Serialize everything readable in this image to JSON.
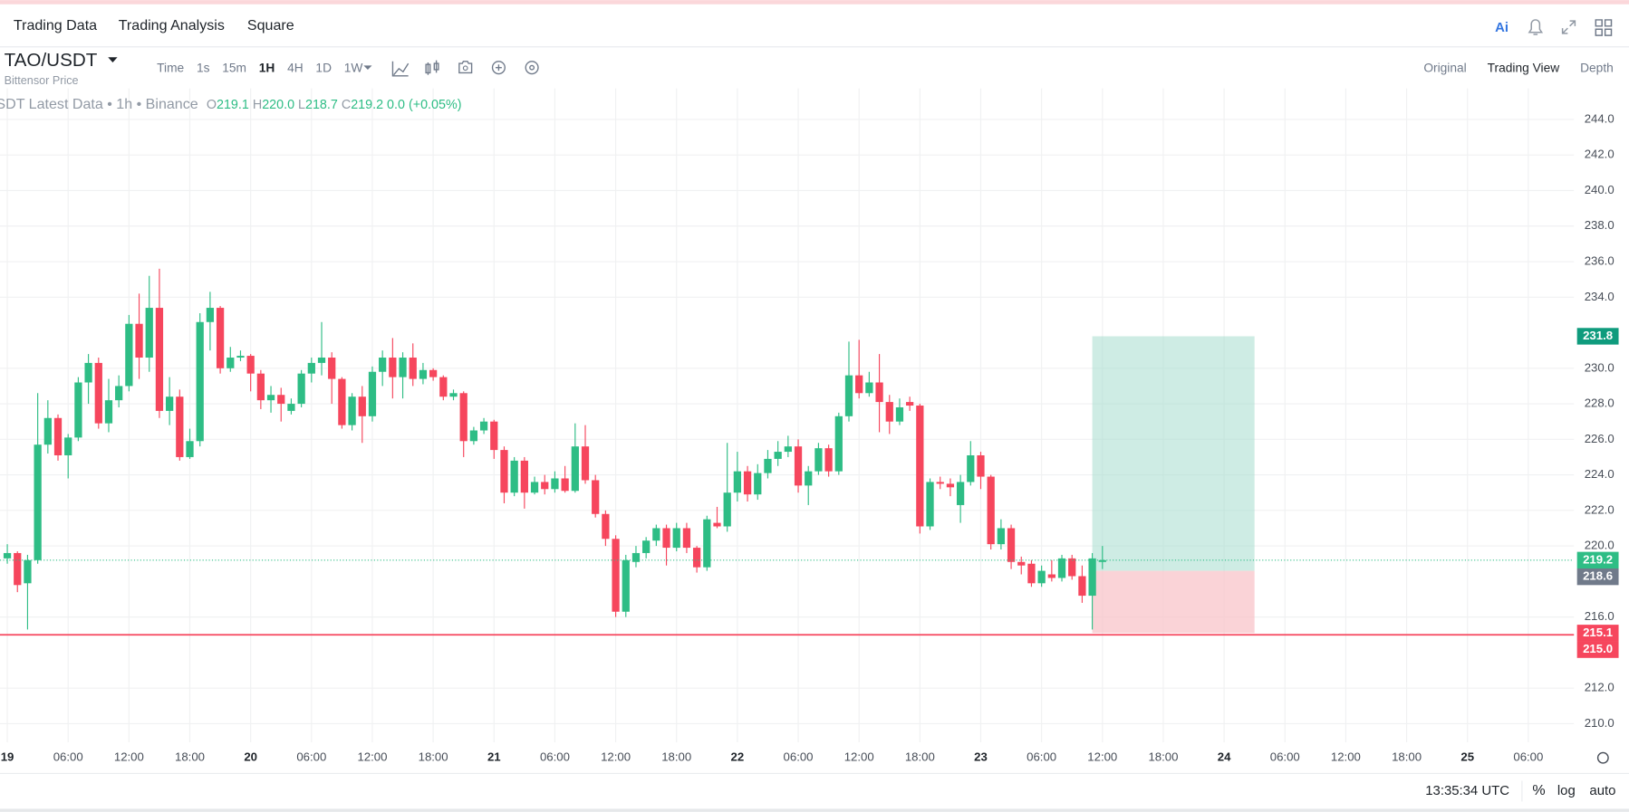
{
  "nav": {
    "items": [
      "Trading Data",
      "Trading Analysis",
      "Square"
    ],
    "ai": "Ai"
  },
  "symbol": {
    "pair": "TAO/USDT",
    "name": "Bittensor Price"
  },
  "toolbar": {
    "intervals": [
      "Time",
      "1s",
      "15m",
      "1H",
      "4H",
      "1D",
      "1W"
    ],
    "active": "1H",
    "views": [
      "Original",
      "Trading View",
      "Depth"
    ],
    "active_view": "Trading View"
  },
  "legend": {
    "source": "SDT Latest Data • 1h • Binance",
    "o_label": "O",
    "o": "219.1",
    "h_label": "H",
    "h": "220.0",
    "l_label": "L",
    "l": "218.7",
    "c_label": "C",
    "c": "219.2",
    "change": "0.0 (+0.05%)"
  },
  "footer": {
    "clock": "13:35:34 UTC",
    "percent": "%",
    "log": "log",
    "auto": "auto"
  },
  "chart_data": {
    "type": "candlestick",
    "x": [
      0,
      1,
      2,
      3,
      4,
      5,
      6,
      7,
      8,
      9,
      10,
      11,
      12,
      13,
      14,
      15,
      16,
      17,
      18,
      19,
      20,
      21,
      22,
      23,
      24,
      25,
      26,
      27,
      28,
      29,
      30,
      31,
      32,
      33,
      34,
      35,
      36,
      37,
      38,
      39,
      40,
      41,
      42,
      43,
      44,
      45,
      46,
      47,
      48,
      49,
      50,
      51,
      52,
      53,
      54,
      55,
      56,
      57,
      58,
      59,
      60,
      61,
      62,
      63,
      64,
      65,
      66,
      67,
      68,
      69,
      70,
      71,
      72,
      73,
      74,
      75,
      76,
      77,
      78,
      79,
      80,
      81,
      82,
      83,
      84,
      85,
      86,
      87,
      88,
      89,
      90,
      91,
      92,
      93,
      94,
      95,
      96,
      97,
      98,
      99,
      100,
      101,
      102,
      103,
      104,
      105,
      106,
      107,
      108
    ],
    "open": [
      219.3,
      219.6,
      217.9,
      219.2,
      225.7,
      227.2,
      225.1,
      226.1,
      229.2,
      230.3,
      226.9,
      228.2,
      229.0,
      232.5,
      230.6,
      233.4,
      227.6,
      228.4,
      225.0,
      225.9,
      232.6,
      233.4,
      230.0,
      230.6,
      230.7,
      229.7,
      228.2,
      228.5,
      227.6,
      228.0,
      229.7,
      230.3,
      230.6,
      229.4,
      226.8,
      228.4,
      227.3,
      229.8,
      230.6,
      229.5,
      230.6,
      229.4,
      229.9,
      229.5,
      228.4,
      228.6,
      225.9,
      226.5,
      227.0,
      225.4,
      223.0,
      224.8,
      223.0,
      223.6,
      223.2,
      223.8,
      223.1,
      225.6,
      223.7,
      221.8,
      220.4,
      216.3,
      219.1,
      219.6,
      220.3,
      221.0,
      219.9,
      221.0,
      219.9,
      218.8,
      221.3,
      221.1,
      223.0,
      224.2,
      222.9,
      224.1,
      224.9,
      225.3,
      225.6,
      223.4,
      224.2,
      225.5,
      224.2,
      227.3,
      229.6,
      228.6,
      229.2,
      228.1,
      227.0,
      228.1,
      227.9,
      221.1,
      223.6,
      223.5,
      222.3,
      223.6,
      225.1,
      223.9,
      220.1,
      221.0,
      219.1,
      219.0,
      217.9,
      218.4,
      218.2,
      219.3,
      218.3,
      217.2,
      219.1
    ],
    "high": [
      220.1,
      219.7,
      219.5,
      228.6,
      228.2,
      227.4,
      226.3,
      229.5,
      230.8,
      230.6,
      229.4,
      229.6,
      233.0,
      234.2,
      235.2,
      235.6,
      229.5,
      228.8,
      226.6,
      233.1,
      234.3,
      233.5,
      231.2,
      231.0,
      230.8,
      229.9,
      229.0,
      228.9,
      228.3,
      229.9,
      230.6,
      232.6,
      230.9,
      229.5,
      228.6,
      229.0,
      230.1,
      231.0,
      231.7,
      230.9,
      231.4,
      230.3,
      230.0,
      229.6,
      228.8,
      228.7,
      226.7,
      227.2,
      227.1,
      225.6,
      225.0,
      225.0,
      223.9,
      224.0,
      224.2,
      224.5,
      226.9,
      226.8,
      224.0,
      222.0,
      220.6,
      219.5,
      220.0,
      220.5,
      221.2,
      221.2,
      221.3,
      221.3,
      220.0,
      221.7,
      222.2,
      225.8,
      225.3,
      224.5,
      224.6,
      225.4,
      225.9,
      226.2,
      226.0,
      224.5,
      225.8,
      225.7,
      227.5,
      231.5,
      231.6,
      229.8,
      230.8,
      228.5,
      228.3,
      228.4,
      228.0,
      223.8,
      223.9,
      223.8,
      224.0,
      225.9,
      225.3,
      224.0,
      221.5,
      221.2,
      219.4,
      219.2,
      218.9,
      219.2,
      219.5,
      219.5,
      218.9,
      219.6,
      220.0
    ],
    "low": [
      219.0,
      217.4,
      215.3,
      219.0,
      225.2,
      224.8,
      223.8,
      225.9,
      228.0,
      226.6,
      226.4,
      227.8,
      228.7,
      229.4,
      229.8,
      227.2,
      226.8,
      224.8,
      224.9,
      225.6,
      231.0,
      229.7,
      229.8,
      230.4,
      228.7,
      227.7,
      227.5,
      227.0,
      227.4,
      227.8,
      229.2,
      229.6,
      228.0,
      226.6,
      226.5,
      225.8,
      227.0,
      229.0,
      228.3,
      228.3,
      229.0,
      229.1,
      229.3,
      228.2,
      228.2,
      225.0,
      225.7,
      226.3,
      224.9,
      222.4,
      222.8,
      222.1,
      222.9,
      222.9,
      223.0,
      223.0,
      223.0,
      223.5,
      221.6,
      220.0,
      216.0,
      216.0,
      218.8,
      219.3,
      220.0,
      218.9,
      219.7,
      219.6,
      218.5,
      218.6,
      221.0,
      220.8,
      222.5,
      222.5,
      222.6,
      223.8,
      224.5,
      225.0,
      223.0,
      222.3,
      224.0,
      223.9,
      224.0,
      227.0,
      228.3,
      228.4,
      226.4,
      226.3,
      226.8,
      227.6,
      220.7,
      220.9,
      223.2,
      222.8,
      221.3,
      223.4,
      223.2,
      219.8,
      219.8,
      218.7,
      218.4,
      217.7,
      217.7,
      218.0,
      218.0,
      218.1,
      216.8,
      215.3,
      218.7
    ],
    "close": [
      219.6,
      217.8,
      219.2,
      225.7,
      227.2,
      225.1,
      226.1,
      229.2,
      230.3,
      226.9,
      228.2,
      229.0,
      232.5,
      230.6,
      233.4,
      227.6,
      228.4,
      225.0,
      225.9,
      232.6,
      233.4,
      230.0,
      230.6,
      230.7,
      229.7,
      228.2,
      228.5,
      228.0,
      228.0,
      229.7,
      230.3,
      230.6,
      229.4,
      226.8,
      228.4,
      227.3,
      229.8,
      230.6,
      229.5,
      230.6,
      229.4,
      229.9,
      229.5,
      228.4,
      228.6,
      225.9,
      226.5,
      227.0,
      225.4,
      223.0,
      224.8,
      223.0,
      223.6,
      223.2,
      223.8,
      223.1,
      225.6,
      223.7,
      221.8,
      220.4,
      216.3,
      219.2,
      219.6,
      220.3,
      221.0,
      219.9,
      221.0,
      219.9,
      218.8,
      221.5,
      221.1,
      223.0,
      224.2,
      222.9,
      224.1,
      224.9,
      225.3,
      225.6,
      223.4,
      224.2,
      225.5,
      224.2,
      227.3,
      229.6,
      228.6,
      229.2,
      228.1,
      227.0,
      227.8,
      227.9,
      221.1,
      223.6,
      223.5,
      223.3,
      223.6,
      225.1,
      223.9,
      220.1,
      221.0,
      219.1,
      218.9,
      217.9,
      218.6,
      218.2,
      219.3,
      218.3,
      217.2,
      219.3,
      219.2
    ],
    "up_color": "#2ebd85",
    "down_color": "#f6465d",
    "xlim": [
      -0.72,
      154.5
    ],
    "ylim": [
      208.95,
      245.75
    ],
    "grid": true,
    "xticks": [
      {
        "value": 0,
        "label": "19"
      },
      {
        "value": 6,
        "label": "06:00"
      },
      {
        "value": 12,
        "label": "12:00"
      },
      {
        "value": 18,
        "label": "18:00"
      },
      {
        "value": 24,
        "label": "20"
      },
      {
        "value": 30,
        "label": "06:00"
      },
      {
        "value": 36,
        "label": "12:00"
      },
      {
        "value": 42,
        "label": "18:00"
      },
      {
        "value": 48,
        "label": "21"
      },
      {
        "value": 54,
        "label": "06:00"
      },
      {
        "value": 60,
        "label": "12:00"
      },
      {
        "value": 66,
        "label": "18:00"
      },
      {
        "value": 72,
        "label": "22"
      },
      {
        "value": 78,
        "label": "06:00"
      },
      {
        "value": 84,
        "label": "12:00"
      },
      {
        "value": 90,
        "label": "18:00"
      },
      {
        "value": 96,
        "label": "23"
      },
      {
        "value": 102,
        "label": "06:00"
      },
      {
        "value": 108,
        "label": "12:00"
      },
      {
        "value": 114,
        "label": "18:00"
      },
      {
        "value": 120,
        "label": "24"
      },
      {
        "value": 126,
        "label": "06:00"
      },
      {
        "value": 132,
        "label": "12:00"
      },
      {
        "value": 138,
        "label": "18:00"
      },
      {
        "value": 144,
        "label": "25"
      },
      {
        "value": 150,
        "label": "06:00"
      }
    ],
    "yticks": [
      {
        "value": 210,
        "label": "210.0"
      },
      {
        "value": 212,
        "label": "212.0"
      },
      {
        "value": 216,
        "label": "216.0"
      },
      {
        "value": 220,
        "label": "220.0"
      },
      {
        "value": 222,
        "label": "222.0"
      },
      {
        "value": 224,
        "label": "224.0"
      },
      {
        "value": 226,
        "label": "226.0"
      },
      {
        "value": 228,
        "label": "228.0"
      },
      {
        "value": 230,
        "label": "230.0"
      },
      {
        "value": 234,
        "label": "234.0"
      },
      {
        "value": 236,
        "label": "236.0"
      },
      {
        "value": 238,
        "label": "238.0"
      },
      {
        "value": 240,
        "label": "240.0"
      },
      {
        "value": 242,
        "label": "242.0"
      },
      {
        "value": 244,
        "label": "244.0"
      }
    ],
    "price_lines": [
      {
        "value": 231.8,
        "color": "#0f9b7d"
      },
      {
        "value": 219.2,
        "color": "#2ebd85",
        "line": "dotted"
      },
      {
        "value": 218.6,
        "color": "#707a8a"
      },
      {
        "value": 215.1,
        "color": "#f6465d"
      },
      {
        "value": 215,
        "label": "215.0",
        "color": "#f6465d",
        "line": "solid"
      }
    ],
    "position": {
      "start": 107,
      "end": 123,
      "entry": 218.6,
      "target": 231.8,
      "stop": 215.1,
      "profit_color": "#a6dccd",
      "loss_color": "#f8c4c9"
    }
  }
}
